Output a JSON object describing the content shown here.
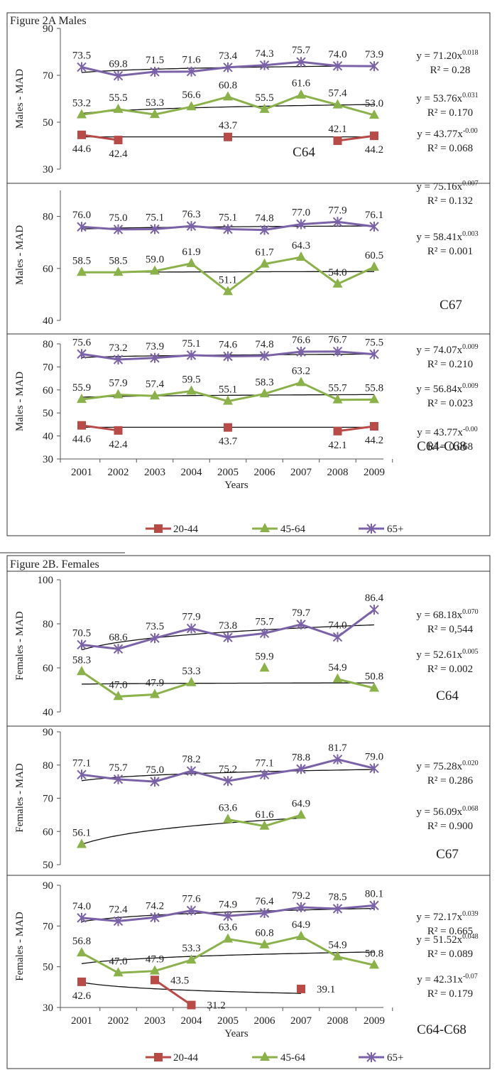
{
  "colors": {
    "series_20_44": "#b84a48",
    "series_45_64": "#8bb14a",
    "series_65_plus": "#7b62a8",
    "trend": "#111111",
    "axis": "#555555"
  },
  "figures": [
    {
      "title": "Figure 2A Males",
      "xlabel": "Years",
      "legend": [
        "20-44",
        "45-64",
        "65+"
      ]
    },
    {
      "title": "Figure 2B. Females",
      "xlabel": "Years",
      "legend": [
        "20-44",
        "45-64",
        "65+"
      ]
    }
  ],
  "chart_data": [
    {
      "type": "line",
      "figure": 0,
      "ylabel": "Males - MAD",
      "label": "C64",
      "ylim": [
        30,
        90
      ],
      "yticks": [
        30,
        50,
        70,
        90
      ],
      "x": [
        2001,
        2002,
        2003,
        2004,
        2005,
        2006,
        2007,
        2008,
        2009
      ],
      "show_xaxis": false,
      "grid": false,
      "series": [
        {
          "name": "65+",
          "values": [
            73.5,
            69.8,
            71.5,
            71.6,
            73.4,
            74.3,
            75.7,
            74.0,
            73.9
          ],
          "labels": [
            "73.5",
            "69.8",
            "71.5",
            "71.6",
            "73.4",
            "74.3",
            "75.7",
            "74.0",
            "73.9"
          ],
          "label_pos": [
            "a",
            "a",
            "a",
            "a",
            "a",
            "a",
            "a",
            "a",
            "a"
          ],
          "equation": "y = 71.20x",
          "exponent": "0.018",
          "r2": "R² = 0.28",
          "trend": {
            "a": 71.2,
            "b": 0.018
          }
        },
        {
          "name": "45-64",
          "values": [
            53.2,
            55.5,
            53.3,
            56.6,
            60.8,
            55.5,
            61.6,
            57.4,
            53.0
          ],
          "labels": [
            "53.2",
            "55.5",
            "53.3",
            "56.6",
            "60.8",
            "55.5",
            "61.6",
            "57.4",
            "53.0"
          ],
          "label_pos": [
            "a",
            "a",
            "a",
            "a",
            "a",
            "a",
            "a",
            "a",
            "a"
          ],
          "equation": "y = 53.76x",
          "exponent": "0.031",
          "r2": "R² = 0.170",
          "trend": {
            "a": 53.76,
            "b": 0.031
          }
        },
        {
          "name": "20-44",
          "values": [
            44.6,
            42.4,
            null,
            null,
            43.7,
            null,
            null,
            42.1,
            44.2
          ],
          "labels": [
            "44.6",
            "42.4",
            null,
            null,
            "43.7",
            null,
            null,
            "42.1",
            "44.2"
          ],
          "label_pos": [
            "b",
            "b",
            "",
            "",
            "a",
            "",
            "",
            "a",
            "b"
          ],
          "equation": "y = 43.77x",
          "exponent": "-0.00",
          "r2": "R² = 0.068",
          "trend": {
            "a": 43.77,
            "b": 0
          }
        }
      ]
    },
    {
      "type": "line",
      "figure": 0,
      "ylabel": "Males - MAD",
      "label": "C67",
      "ylim": [
        40,
        90
      ],
      "yticks": [
        40,
        60,
        80
      ],
      "x": [
        2001,
        2002,
        2003,
        2004,
        2005,
        2006,
        2007,
        2008,
        2009
      ],
      "show_xaxis": false,
      "grid": false,
      "series": [
        {
          "name": "65+",
          "values": [
            76.0,
            75.0,
            75.1,
            76.3,
            75.1,
            74.8,
            77.0,
            77.9,
            76.1
          ],
          "labels": [
            "76.0",
            "75.0",
            "75.1",
            "76.3",
            "75.1",
            "74.8",
            "77.0",
            "77.9",
            "76.1"
          ],
          "label_pos": [
            "a",
            "a",
            "a",
            "a",
            "a",
            "a",
            "a",
            "a",
            "a"
          ],
          "equation": "y = 75.16x",
          "exponent": "0.007",
          "r2": "R² = 0.132",
          "trend": {
            "a": 75.16,
            "b": 0.007
          }
        },
        {
          "name": "45-64",
          "values": [
            58.5,
            58.5,
            59.0,
            61.9,
            51.1,
            61.7,
            64.3,
            54.0,
            60.5
          ],
          "labels": [
            "58.5",
            "58.5",
            "59.0",
            "61.9",
            "51.1",
            "61.7",
            "64.3",
            "54.0",
            "60.5"
          ],
          "label_pos": [
            "a",
            "a",
            "a",
            "a",
            "a",
            "a",
            "a",
            "a",
            "a"
          ],
          "equation": "y = 58.41x",
          "exponent": "0.003",
          "r2": "R² = 0.001",
          "trend": {
            "a": 58.41,
            "b": 0.003
          }
        }
      ]
    },
    {
      "type": "line",
      "figure": 0,
      "ylabel": "Males - MAD",
      "label": "C64-C68",
      "ylim": [
        30,
        80
      ],
      "yticks": [
        30,
        40,
        50,
        60,
        70,
        80
      ],
      "x": [
        2001,
        2002,
        2003,
        2004,
        2005,
        2006,
        2007,
        2008,
        2009
      ],
      "show_xaxis": true,
      "grid": false,
      "series": [
        {
          "name": "65+",
          "values": [
            75.6,
            73.2,
            73.9,
            75.1,
            74.6,
            74.8,
            76.6,
            76.7,
            75.5
          ],
          "labels": [
            "75.6",
            "73.2",
            "73.9",
            "75.1",
            "74.6",
            "74.8",
            "76.6",
            "76.7",
            "75.5"
          ],
          "label_pos": [
            "a",
            "a",
            "a",
            "a",
            "a",
            "a",
            "a",
            "a",
            "a"
          ],
          "equation": "y = 74.07x",
          "exponent": "0.009",
          "r2": "R² = 0.210",
          "trend": {
            "a": 74.07,
            "b": 0.009
          }
        },
        {
          "name": "45-64",
          "values": [
            55.9,
            57.9,
            57.4,
            59.5,
            55.1,
            58.3,
            63.2,
            55.7,
            55.8
          ],
          "labels": [
            "55.9",
            "57.9",
            "57.4",
            "59.5",
            "55.1",
            "58.3",
            "63.2",
            "55.7",
            "55.8"
          ],
          "label_pos": [
            "a",
            "a",
            "a",
            "a",
            "a",
            "a",
            "a",
            "a",
            "a"
          ],
          "equation": "y = 56.84x",
          "exponent": "0.009",
          "r2": "R² = 0.023",
          "trend": {
            "a": 56.84,
            "b": 0.009
          }
        },
        {
          "name": "20-44",
          "values": [
            44.6,
            42.4,
            null,
            null,
            43.7,
            null,
            null,
            42.1,
            44.2
          ],
          "labels": [
            "44.6",
            "42.4",
            null,
            null,
            "43.7",
            null,
            null,
            "42.1",
            "44.2"
          ],
          "label_pos": [
            "b",
            "b",
            "",
            "",
            "b",
            "",
            "",
            "b",
            "b"
          ],
          "equation": "y = 43.77x",
          "exponent": "-0.00",
          "r2": "R² = 0.068",
          "trend": {
            "a": 43.77,
            "b": 0
          }
        }
      ]
    },
    {
      "type": "line",
      "figure": 1,
      "ylabel": "Females - MAD",
      "label": "C64",
      "ylim": [
        40,
        100
      ],
      "yticks": [
        40,
        60,
        80,
        100
      ],
      "x": [
        2001,
        2002,
        2003,
        2004,
        2005,
        2006,
        2007,
        2008,
        2009
      ],
      "show_xaxis": false,
      "grid": false,
      "series": [
        {
          "name": "65+",
          "values": [
            70.5,
            68.6,
            73.5,
            77.9,
            73.8,
            75.7,
            79.7,
            74.0,
            86.4
          ],
          "labels": [
            "70.5",
            "68.6",
            "73.5",
            "77.9",
            "73.8",
            "75.7",
            "79.7",
            "74.0",
            "86.4"
          ],
          "label_pos": [
            "a",
            "a",
            "a",
            "a",
            "a",
            "a",
            "a",
            "a",
            "a"
          ],
          "equation": "y = 68.18x",
          "exponent": "0.070",
          "r2": "R² = 0,544",
          "trend": {
            "a": 68.18,
            "b": 0.07
          }
        },
        {
          "name": "45-64",
          "values": [
            58.3,
            47.0,
            47.9,
            53.3,
            null,
            59.9,
            null,
            54.9,
            50.8
          ],
          "labels": [
            "58.3",
            "47.0",
            "47.9",
            "53.3",
            null,
            "59.9",
            null,
            "54.9",
            "50.8"
          ],
          "label_pos": [
            "a",
            "a",
            "a",
            "a",
            "",
            "a",
            "",
            "a",
            "a"
          ],
          "equation": "y = 52.61x",
          "exponent": "0.005",
          "r2": "R² = 0.002",
          "trend": {
            "a": 52.61,
            "b": 0.005
          }
        }
      ]
    },
    {
      "type": "line",
      "figure": 1,
      "ylabel": "Females - MAD",
      "label": "C67",
      "ylim": [
        50,
        90
      ],
      "yticks": [
        50,
        60,
        70,
        80,
        90
      ],
      "x": [
        2001,
        2002,
        2003,
        2004,
        2005,
        2006,
        2007,
        2008,
        2009
      ],
      "show_xaxis": false,
      "grid": false,
      "series": [
        {
          "name": "65+",
          "values": [
            77.1,
            75.7,
            75.0,
            78.2,
            75.2,
            77.1,
            78.8,
            81.7,
            79.0
          ],
          "labels": [
            "77.1",
            "75.7",
            "75.0",
            "78.2",
            "75.2",
            "77.1",
            "78.8",
            "81.7",
            "79.0"
          ],
          "label_pos": [
            "a",
            "a",
            "a",
            "a",
            "a",
            "a",
            "a",
            "a",
            "a"
          ],
          "equation": "y = 75.28x",
          "exponent": "0.020",
          "r2": "R² = 0.286",
          "trend": {
            "a": 75.28,
            "b": 0.02
          }
        },
        {
          "name": "45-64",
          "values": [
            56.1,
            null,
            null,
            null,
            63.6,
            61.6,
            64.9,
            null,
            null
          ],
          "labels": [
            "56.1",
            null,
            null,
            null,
            "63.6",
            "61.6",
            "64.9",
            null,
            null
          ],
          "label_pos": [
            "a",
            "",
            "",
            "",
            "a",
            "a",
            "a",
            "",
            ""
          ],
          "equation": "y = 56.09x",
          "exponent": "0.068",
          "r2": "R² = 0.900",
          "trend": {
            "a": 56.09,
            "b": 0.068
          }
        }
      ]
    },
    {
      "type": "line",
      "figure": 1,
      "ylabel": "Females - MAD",
      "label": "C64-C68",
      "ylim": [
        30,
        90
      ],
      "yticks": [
        30,
        50,
        70,
        90
      ],
      "x": [
        2001,
        2002,
        2003,
        2004,
        2005,
        2006,
        2007,
        2008,
        2009
      ],
      "show_xaxis": true,
      "grid": false,
      "series": [
        {
          "name": "65+",
          "values": [
            74.0,
            72.4,
            74.2,
            77.6,
            74.9,
            76.4,
            79.2,
            78.5,
            80.1
          ],
          "labels": [
            "74.0",
            "72.4",
            "74.2",
            "77.6",
            "74.9",
            "76.4",
            "79.2",
            "78.5",
            "80.1"
          ],
          "label_pos": [
            "a",
            "a",
            "a",
            "a",
            "a",
            "a",
            "a",
            "a",
            "a"
          ],
          "equation": "y = 72.17x",
          "exponent": "0.039",
          "r2": "R² = 0.665",
          "trend": {
            "a": 72.17,
            "b": 0.039
          }
        },
        {
          "name": "45-64",
          "values": [
            56.8,
            47.0,
            47.9,
            53.3,
            63.6,
            60.8,
            64.9,
            54.9,
            50.8
          ],
          "labels": [
            "56.8",
            "47.0",
            "47.9",
            "53.3",
            "63.6",
            "60.8",
            "64.9",
            "54.9",
            "50.8"
          ],
          "label_pos": [
            "a",
            "a",
            "a",
            "a",
            "a",
            "a",
            "a",
            "a",
            "a"
          ],
          "equation": "y = 51.52x",
          "exponent": "0.048",
          "r2": "R² = 0.089",
          "trend": {
            "a": 51.52,
            "b": 0.048
          }
        },
        {
          "name": "20-44",
          "values": [
            42.6,
            null,
            43.5,
            31.2,
            null,
            null,
            39.1,
            null,
            null
          ],
          "labels": [
            "42.6",
            null,
            "43.5",
            "31.2",
            null,
            null,
            "39.1",
            null,
            null
          ],
          "label_pos": [
            "b",
            "",
            "r",
            "r",
            "",
            "",
            "r",
            "",
            ""
          ],
          "equation": "y = 42.31x",
          "exponent": "-0.07",
          "r2": "R² = 0.179",
          "trend": {
            "a": 42.31,
            "b": -0.07
          }
        }
      ]
    }
  ]
}
